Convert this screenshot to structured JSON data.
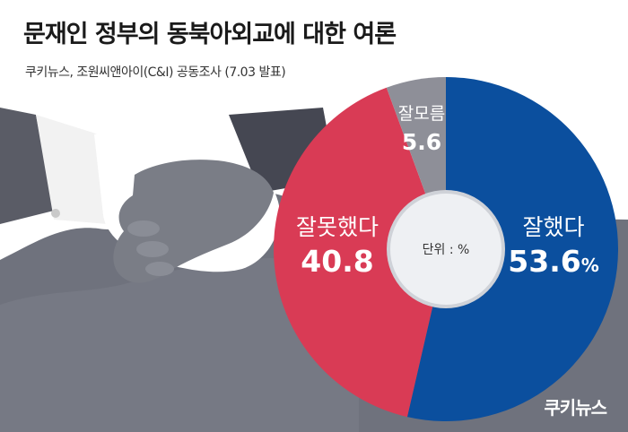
{
  "header": {
    "title": "문재인 정부의 동북아외교에 대한 여론",
    "subtitle": "쿠키뉴스, 조원씨앤아이(C&I) 공동조사 (7.03 발표)"
  },
  "brand": {
    "logo_text": "쿠키뉴스"
  },
  "colors": {
    "good": "#0b4f9e",
    "bad": "#d93b55",
    "unknown": "#8e8f98",
    "center": "#eef0f3",
    "background_dark": "#5c5f6b"
  },
  "chart_data": {
    "type": "pie",
    "donut": true,
    "center_label": "단위 : %",
    "slices": [
      {
        "label": "잘했다",
        "value": 53.6,
        "value_text": "53.6",
        "unit": "%",
        "color": "#0b4f9e"
      },
      {
        "label": "잘못했다",
        "value": 40.8,
        "value_text": "40.8",
        "unit": "",
        "color": "#d93b55"
      },
      {
        "label": "잘모름",
        "value": 5.6,
        "value_text": "5.6",
        "unit": "",
        "color": "#8e8f98"
      }
    ]
  }
}
